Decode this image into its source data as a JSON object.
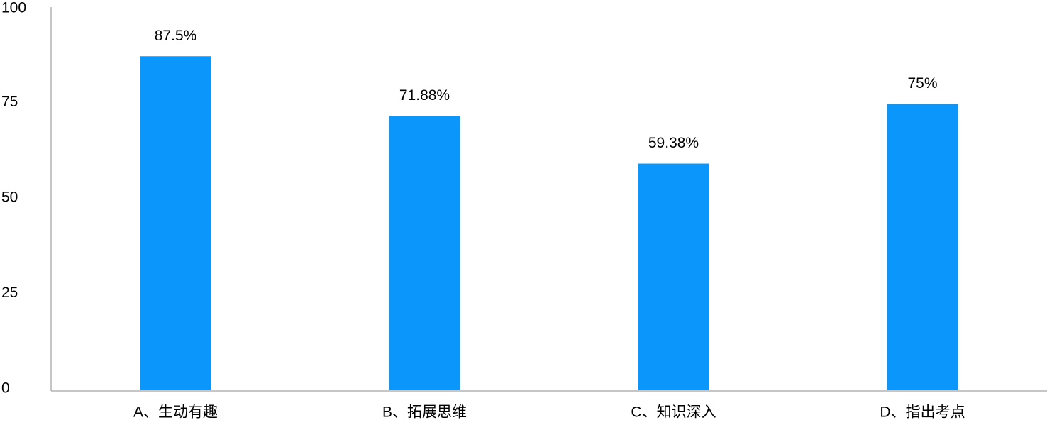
{
  "chart_data": {
    "type": "bar",
    "categories": [
      "A、生动有趣",
      "B、拓展思维",
      "C、知识深入",
      "D、指出考点"
    ],
    "values": [
      87.5,
      71.88,
      59.38,
      75
    ],
    "value_labels": [
      "87.5%",
      "71.88%",
      "59.38%",
      "75%"
    ],
    "color": "#0a96fa",
    "ylim": [
      0,
      100
    ],
    "yticks": [
      0,
      25,
      50,
      75,
      100
    ],
    "grid": false
  }
}
